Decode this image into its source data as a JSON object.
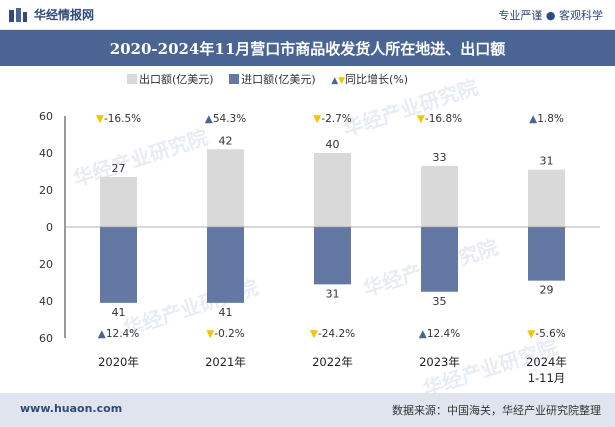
{
  "header": {
    "brand": "华经情报网",
    "tagline": "专业严谨 ● 客观科学"
  },
  "title": "2020-2024年11月营口市商品收发货人所在地进、出口额",
  "legend": {
    "export_label": "出口额(亿美元)",
    "import_label": "进口额(亿美元)",
    "growth_label": "同比增长(%)"
  },
  "footer": {
    "site": "www.huaon.com",
    "source": "数据来源：中国海关，华经产业研究院整理"
  },
  "watermark": "华经产业研究院",
  "colors": {
    "export": "#d9d9d9",
    "import": "#6378a3",
    "up": "#4a6494",
    "down": "#f5c400",
    "title_bg": "#4a6494"
  },
  "chart_data": {
    "type": "bar",
    "categories": [
      "2020年",
      "2021年",
      "2022年",
      "2023年",
      "2024年\n1-11月"
    ],
    "series": [
      {
        "name": "出口额(亿美元)",
        "values": [
          27,
          42,
          40,
          33,
          31
        ]
      },
      {
        "name": "进口额(亿美元)",
        "values": [
          41,
          41,
          31,
          35,
          29
        ]
      }
    ],
    "export_growth": [
      {
        "label": "-16.5%",
        "dir": "down"
      },
      {
        "label": "54.3%",
        "dir": "up"
      },
      {
        "label": "-2.7%",
        "dir": "down"
      },
      {
        "label": "-16.8%",
        "dir": "down"
      },
      {
        "label": "1.8%",
        "dir": "up"
      }
    ],
    "import_growth": [
      {
        "label": "12.4%",
        "dir": "up"
      },
      {
        "label": "-0.2%",
        "dir": "down"
      },
      {
        "label": "-24.2%",
        "dir": "down"
      },
      {
        "label": "12.4%",
        "dir": "up"
      },
      {
        "label": "-5.6%",
        "dir": "down"
      }
    ],
    "yticks": [
      "60",
      "40",
      "20",
      "0",
      "20",
      "40",
      "60"
    ],
    "ylim": [
      -60,
      60
    ],
    "grid": false
  }
}
